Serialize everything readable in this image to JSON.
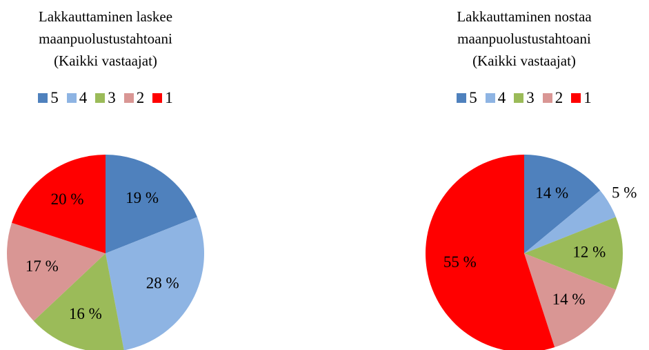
{
  "chart_data": [
    {
      "type": "pie",
      "title": "Lakkauttaminen laskee maanpuolustustahtoani",
      "subtitle": "(Kaikki vastaajat)",
      "categories": [
        "5",
        "4",
        "3",
        "2",
        "1"
      ],
      "values": [
        19,
        28,
        16,
        17,
        20
      ],
      "value_labels": [
        "19 %",
        "28 %",
        "16 %",
        "17 %",
        "20 %"
      ],
      "colors": [
        "#4f81bd",
        "#8eb4e3",
        "#9bbb59",
        "#d99694",
        "#ff0000"
      ]
    },
    {
      "type": "pie",
      "title": "Lakkauttaminen nostaa maanpuolustustahtoani",
      "subtitle": "(Kaikki vastaajat)",
      "categories": [
        "5",
        "4",
        "3",
        "2",
        "1"
      ],
      "values": [
        14,
        5,
        12,
        14,
        55
      ],
      "value_labels": [
        "14 %",
        "5 %",
        "12 %",
        "14 %",
        "55 %"
      ],
      "colors": [
        "#4f81bd",
        "#8eb4e3",
        "#9bbb59",
        "#d99694",
        "#ff0000"
      ]
    }
  ]
}
